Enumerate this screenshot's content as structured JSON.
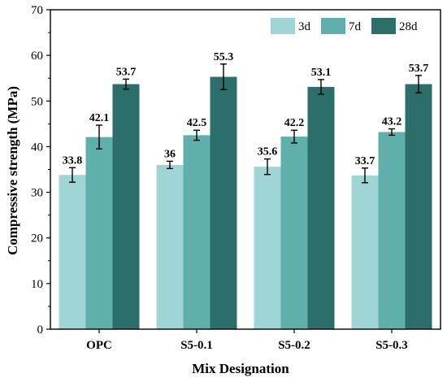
{
  "chart_data": {
    "type": "bar",
    "xlabel": "Mix Designation",
    "ylabel": "Compressive strength (MPa)",
    "ylim": [
      0,
      70
    ],
    "yticks": [
      0,
      10,
      20,
      30,
      40,
      50,
      60,
      70
    ],
    "categories": [
      "OPC",
      "S5-0.1",
      "S5-0.2",
      "S5-0.3"
    ],
    "legend_position": "top-right",
    "series": [
      {
        "name": "3d",
        "color": "#9fd6d5",
        "values": [
          33.8,
          36,
          35.6,
          33.7
        ],
        "labels": [
          "33.8",
          "36",
          "35.6",
          "33.7"
        ],
        "errors": [
          1.6,
          0.8,
          1.7,
          1.6
        ]
      },
      {
        "name": "7d",
        "color": "#5fb0ab",
        "values": [
          42.1,
          42.5,
          42.2,
          43.2
        ],
        "labels": [
          "42.1",
          "42.5",
          "42.2",
          "43.2"
        ],
        "errors": [
          2.6,
          1.1,
          1.4,
          0.7
        ]
      },
      {
        "name": "28d",
        "color": "#2b6e6a",
        "values": [
          53.7,
          55.3,
          53.1,
          53.7
        ],
        "labels": [
          "53.7",
          "55.3",
          "53.1",
          "53.7"
        ],
        "errors": [
          1.1,
          2.8,
          1.6,
          1.9
        ]
      }
    ]
  }
}
